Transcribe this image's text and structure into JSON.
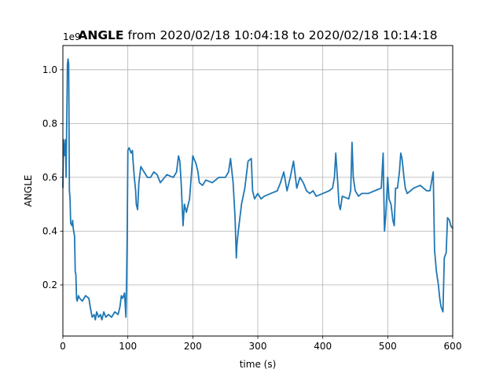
{
  "chart_data": {
    "type": "line",
    "title_bold": "ANGLE",
    "title_rest": " from 2020/02/18 10:04:18 to 2020/02/18 10:14:18",
    "xlabel": "time (s)",
    "ylabel": "ANGLE",
    "y_offset_label": "1e9",
    "xlim": [
      0,
      600
    ],
    "ylim": [
      0.01,
      1.09
    ],
    "x_ticks": [
      0,
      100,
      200,
      300,
      400,
      500,
      600
    ],
    "y_ticks": [
      0.2,
      0.4,
      0.6,
      0.8,
      1.0
    ],
    "x_tick_labels": [
      "0",
      "100",
      "200",
      "300",
      "400",
      "500",
      "600"
    ],
    "y_tick_labels": [
      "0.2",
      "0.4",
      "0.6",
      "0.8",
      "1.0"
    ],
    "grid": true,
    "series": [
      {
        "color": "#1f77b4",
        "x": [
          0,
          1,
          2,
          4,
          5,
          7,
          8,
          9,
          10,
          11,
          12,
          14,
          15,
          16,
          18,
          19,
          20,
          21,
          22,
          24,
          26,
          30,
          35,
          40,
          42,
          45,
          48,
          50,
          52,
          55,
          58,
          60,
          63,
          66,
          70,
          75,
          80,
          85,
          88,
          90,
          92,
          95,
          97,
          98,
          99,
          100,
          102,
          105,
          107,
          108,
          110,
          112,
          113,
          115,
          117,
          120,
          125,
          130,
          135,
          140,
          145,
          150,
          160,
          170,
          175,
          178,
          180,
          182,
          185,
          187,
          190,
          195,
          200,
          205,
          208,
          210,
          215,
          220,
          230,
          240,
          250,
          255,
          258,
          262,
          265,
          267,
          268,
          270,
          275,
          280,
          285,
          290,
          292,
          295,
          300,
          305,
          310,
          320,
          330,
          335,
          340,
          345,
          350,
          355,
          357,
          360,
          365,
          370,
          375,
          380,
          385,
          390,
          400,
          410,
          415,
          418,
          420,
          423,
          425,
          427,
          430,
          440,
          443,
          445,
          447,
          450,
          455,
          460,
          470,
          480,
          490,
          493,
          495,
          497,
          500,
          502,
          505,
          508,
          510,
          512,
          515,
          518,
          520,
          522,
          525,
          527,
          530,
          535,
          540,
          550,
          560,
          565,
          570,
          572,
          575,
          578,
          580,
          582,
          585,
          587,
          590,
          592,
          595,
          597,
          600
        ],
        "y": [
          0.56,
          0.74,
          0.68,
          0.74,
          0.6,
          1.02,
          1.04,
          1.02,
          0.55,
          0.52,
          0.43,
          0.42,
          0.44,
          0.41,
          0.38,
          0.25,
          0.24,
          0.15,
          0.14,
          0.16,
          0.15,
          0.14,
          0.16,
          0.15,
          0.12,
          0.08,
          0.09,
          0.07,
          0.1,
          0.08,
          0.09,
          0.07,
          0.1,
          0.08,
          0.09,
          0.08,
          0.1,
          0.09,
          0.12,
          0.16,
          0.15,
          0.17,
          0.08,
          0.2,
          0.38,
          0.7,
          0.71,
          0.69,
          0.7,
          0.66,
          0.6,
          0.55,
          0.5,
          0.48,
          0.58,
          0.64,
          0.62,
          0.6,
          0.6,
          0.62,
          0.61,
          0.58,
          0.61,
          0.6,
          0.62,
          0.68,
          0.66,
          0.58,
          0.42,
          0.5,
          0.47,
          0.52,
          0.68,
          0.65,
          0.62,
          0.58,
          0.57,
          0.59,
          0.58,
          0.6,
          0.6,
          0.62,
          0.67,
          0.58,
          0.45,
          0.3,
          0.35,
          0.4,
          0.5,
          0.56,
          0.66,
          0.67,
          0.55,
          0.52,
          0.54,
          0.52,
          0.53,
          0.54,
          0.55,
          0.58,
          0.62,
          0.55,
          0.6,
          0.66,
          0.62,
          0.56,
          0.6,
          0.58,
          0.55,
          0.54,
          0.55,
          0.53,
          0.54,
          0.55,
          0.56,
          0.6,
          0.69,
          0.58,
          0.5,
          0.48,
          0.53,
          0.52,
          0.55,
          0.73,
          0.6,
          0.55,
          0.53,
          0.54,
          0.54,
          0.55,
          0.56,
          0.69,
          0.4,
          0.46,
          0.6,
          0.52,
          0.5,
          0.44,
          0.42,
          0.56,
          0.56,
          0.62,
          0.69,
          0.67,
          0.6,
          0.56,
          0.54,
          0.55,
          0.56,
          0.57,
          0.55,
          0.55,
          0.62,
          0.33,
          0.25,
          0.2,
          0.15,
          0.12,
          0.1,
          0.3,
          0.32,
          0.45,
          0.44,
          0.42,
          0.41
        ]
      }
    ]
  }
}
